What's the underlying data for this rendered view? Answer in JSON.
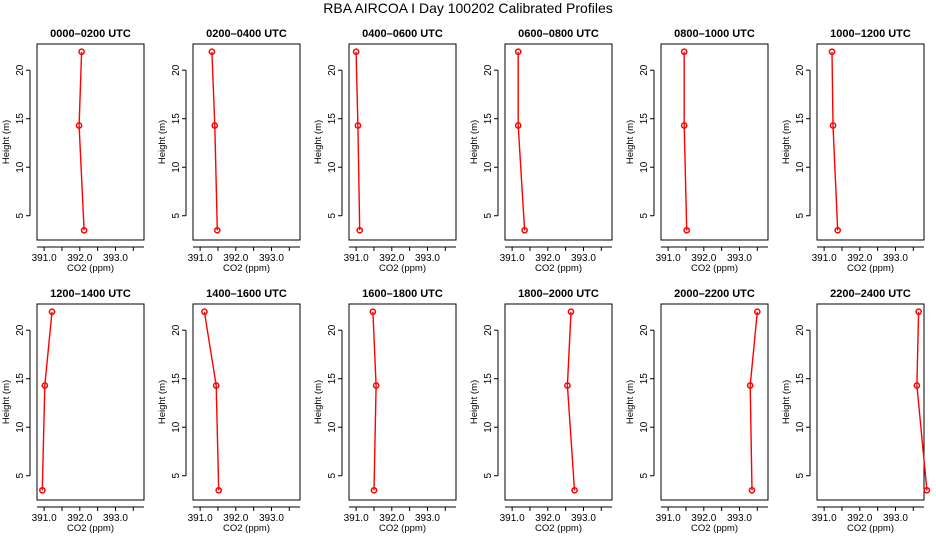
{
  "figure": {
    "title": "RBA AIRCOA I  Day 100202  Calibrated Profiles"
  },
  "chart_data": [
    {
      "type": "line",
      "title": "0000–0200 UTC",
      "xlabel": "CO2 (ppm)",
      "ylabel": "Height (m)",
      "xlim": [
        390.8,
        393.8
      ],
      "ylim": [
        2.5,
        22.7
      ],
      "xticks": [
        "391.0",
        "392.0",
        "393.0"
      ],
      "yticks": [
        "5",
        "10",
        "15",
        "20"
      ],
      "series": [
        {
          "x": [
            392.05,
            391.98,
            392.12
          ],
          "y": [
            21.9,
            14.3,
            3.5
          ]
        }
      ]
    },
    {
      "type": "line",
      "title": "0200–0400 UTC",
      "xlabel": "CO2 (ppm)",
      "ylabel": "Height (m)",
      "xlim": [
        390.8,
        393.8
      ],
      "ylim": [
        2.5,
        22.7
      ],
      "xticks": [
        "391.0",
        "392.0",
        "393.0"
      ],
      "yticks": [
        "5",
        "10",
        "15",
        "20"
      ],
      "series": [
        {
          "x": [
            391.33,
            391.41,
            391.48
          ],
          "y": [
            21.9,
            14.3,
            3.5
          ]
        }
      ]
    },
    {
      "type": "line",
      "title": "0400–0600 UTC",
      "xlabel": "CO2 (ppm)",
      "ylabel": "Height (m)",
      "xlim": [
        390.8,
        393.8
      ],
      "ylim": [
        2.5,
        22.7
      ],
      "xticks": [
        "391.0",
        "392.0",
        "393.0"
      ],
      "yticks": [
        "5",
        "10",
        "15",
        "20"
      ],
      "series": [
        {
          "x": [
            391.0,
            391.05,
            391.1
          ],
          "y": [
            21.9,
            14.3,
            3.5
          ]
        }
      ]
    },
    {
      "type": "line",
      "title": "0600–0800 UTC",
      "xlabel": "CO2 (ppm)",
      "ylabel": "Height (m)",
      "xlim": [
        390.8,
        393.8
      ],
      "ylim": [
        2.5,
        22.7
      ],
      "xticks": [
        "391.0",
        "392.0",
        "393.0"
      ],
      "yticks": [
        "5",
        "10",
        "15",
        "20"
      ],
      "series": [
        {
          "x": [
            391.17,
            391.17,
            391.35
          ],
          "y": [
            21.9,
            14.3,
            3.5
          ]
        }
      ]
    },
    {
      "type": "line",
      "title": "0800–1000 UTC",
      "xlabel": "CO2 (ppm)",
      "ylabel": "Height (m)",
      "xlim": [
        390.8,
        393.8
      ],
      "ylim": [
        2.5,
        22.7
      ],
      "xticks": [
        "391.0",
        "392.0",
        "393.0"
      ],
      "yticks": [
        "5",
        "10",
        "15",
        "20"
      ],
      "series": [
        {
          "x": [
            391.45,
            391.45,
            391.52
          ],
          "y": [
            21.9,
            14.3,
            3.5
          ]
        }
      ]
    },
    {
      "type": "line",
      "title": "1000–1200 UTC",
      "xlabel": "CO2 (ppm)",
      "ylabel": "Height (m)",
      "xlim": [
        390.8,
        393.8
      ],
      "ylim": [
        2.5,
        22.7
      ],
      "xticks": [
        "391.0",
        "392.0",
        "393.0"
      ],
      "yticks": [
        "5",
        "10",
        "15",
        "20"
      ],
      "series": [
        {
          "x": [
            391.22,
            391.25,
            391.38
          ],
          "y": [
            21.9,
            14.3,
            3.5
          ]
        }
      ]
    },
    {
      "type": "line",
      "title": "1200–1400 UTC",
      "xlabel": "CO2 (ppm)",
      "ylabel": "Height (m)",
      "xlim": [
        390.8,
        393.8
      ],
      "ylim": [
        2.5,
        22.7
      ],
      "xticks": [
        "391.0",
        "392.0",
        "393.0"
      ],
      "yticks": [
        "5",
        "10",
        "15",
        "20"
      ],
      "series": [
        {
          "x": [
            391.22,
            391.02,
            390.95
          ],
          "y": [
            21.9,
            14.3,
            3.5
          ]
        }
      ]
    },
    {
      "type": "line",
      "title": "1400–1600 UTC",
      "xlabel": "CO2 (ppm)",
      "ylabel": "Height (m)",
      "xlim": [
        390.8,
        393.8
      ],
      "ylim": [
        2.5,
        22.7
      ],
      "xticks": [
        "391.0",
        "392.0",
        "393.0"
      ],
      "yticks": [
        "5",
        "10",
        "15",
        "20"
      ],
      "series": [
        {
          "x": [
            391.12,
            391.45,
            391.52
          ],
          "y": [
            21.9,
            14.3,
            3.5
          ]
        }
      ]
    },
    {
      "type": "line",
      "title": "1600–1800 UTC",
      "xlabel": "CO2 (ppm)",
      "ylabel": "Height (m)",
      "xlim": [
        390.8,
        393.8
      ],
      "ylim": [
        2.5,
        22.7
      ],
      "xticks": [
        "391.0",
        "392.0",
        "393.0"
      ],
      "yticks": [
        "5",
        "10",
        "15",
        "20"
      ],
      "series": [
        {
          "x": [
            391.47,
            391.56,
            391.5
          ],
          "y": [
            21.9,
            14.3,
            3.5
          ]
        }
      ]
    },
    {
      "type": "line",
      "title": "1800–2000 UTC",
      "xlabel": "CO2 (ppm)",
      "ylabel": "Height (m)",
      "xlim": [
        390.8,
        393.8
      ],
      "ylim": [
        2.5,
        22.7
      ],
      "xticks": [
        "391.0",
        "392.0",
        "393.0"
      ],
      "yticks": [
        "5",
        "10",
        "15",
        "20"
      ],
      "series": [
        {
          "x": [
            392.65,
            392.55,
            392.75
          ],
          "y": [
            21.9,
            14.3,
            3.5
          ]
        }
      ]
    },
    {
      "type": "line",
      "title": "2000–2200 UTC",
      "xlabel": "CO2 (ppm)",
      "ylabel": "Height (m)",
      "xlim": [
        390.8,
        393.8
      ],
      "ylim": [
        2.5,
        22.7
      ],
      "xticks": [
        "391.0",
        "392.0",
        "393.0"
      ],
      "yticks": [
        "5",
        "10",
        "15",
        "20"
      ],
      "series": [
        {
          "x": [
            393.5,
            393.3,
            393.35
          ],
          "y": [
            21.9,
            14.3,
            3.5
          ]
        }
      ]
    },
    {
      "type": "line",
      "title": "2200–2400 UTC",
      "xlabel": "CO2 (ppm)",
      "ylabel": "Height (m)",
      "xlim": [
        390.8,
        393.8
      ],
      "ylim": [
        2.5,
        22.7
      ],
      "xticks": [
        "391.0",
        "392.0",
        "393.0"
      ],
      "yticks": [
        "5",
        "10",
        "15",
        "20"
      ],
      "series": [
        {
          "x": [
            393.65,
            393.6,
            393.88
          ],
          "y": [
            21.9,
            14.3,
            3.5
          ]
        }
      ]
    }
  ]
}
